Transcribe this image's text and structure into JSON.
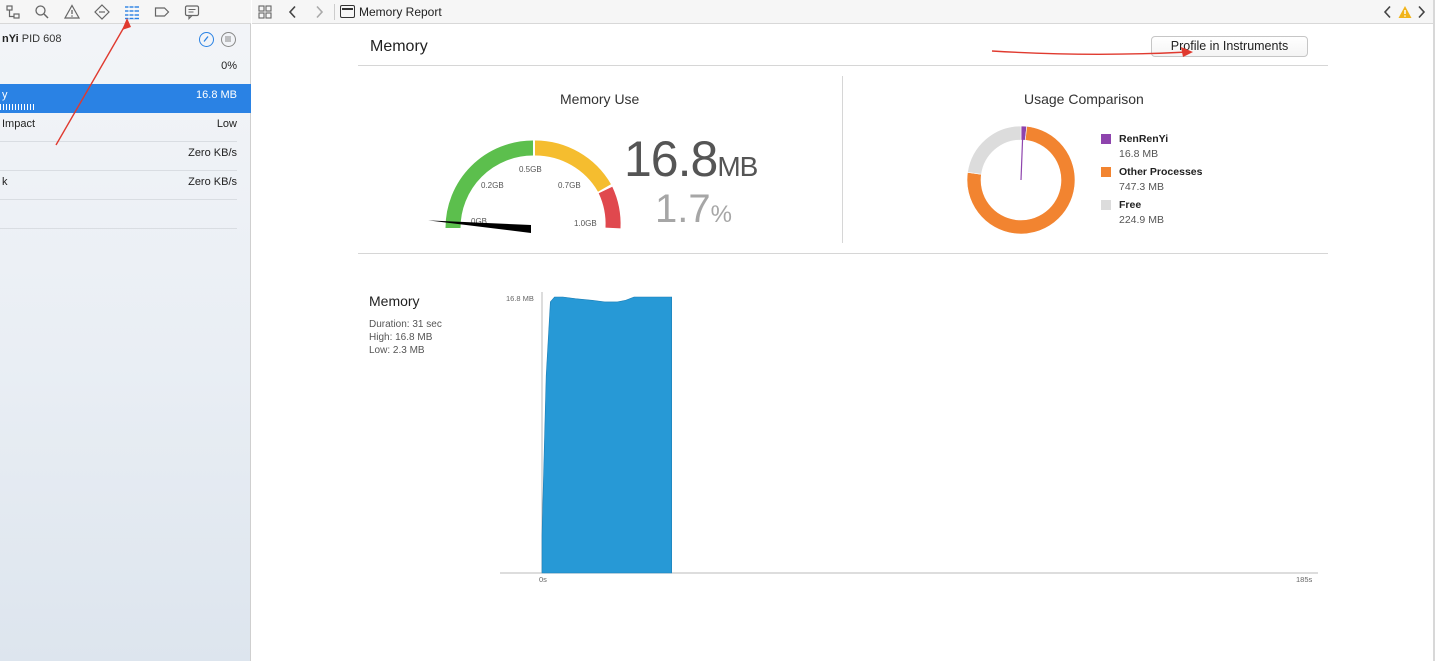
{
  "sidebar": {
    "process_name": "nYi",
    "process_pid": "PID 608",
    "cpu_value": "0%",
    "rows": [
      {
        "label": "y",
        "value": "16.8 MB"
      },
      {
        "label": "Impact",
        "value": "Low"
      },
      {
        "label": "",
        "value": "Zero KB/s"
      },
      {
        "label": "k",
        "value": "Zero KB/s"
      }
    ]
  },
  "editor": {
    "breadcrumb": "Memory Report"
  },
  "report": {
    "title": "Memory",
    "profile_button": "Profile in Instruments",
    "memory_use": {
      "title": "Memory Use",
      "value": "16.8",
      "value_unit": "MB",
      "percent": "1.7",
      "percent_unit": "%",
      "gauge_labels": [
        "0GB",
        "0.2GB",
        "0.5GB",
        "0.7GB",
        "1.0GB"
      ],
      "gauge_fraction": 0.017
    },
    "usage_comparison": {
      "title": "Usage Comparison",
      "items": [
        {
          "name": "RenRenYi",
          "amount": "16.8 MB",
          "value": 16.8,
          "color": "#8e44ad"
        },
        {
          "name": "Other Processes",
          "amount": "747.3 MB",
          "value": 747.3,
          "color": "#f28430"
        },
        {
          "name": "Free",
          "amount": "224.9 MB",
          "value": 224.9,
          "color": "#dcdcdc"
        }
      ]
    },
    "graph": {
      "title": "Memory",
      "duration": "Duration: 31 sec",
      "high": "High: 16.8 MB",
      "low": "Low: 2.3 MB",
      "y_label": "16.8 MB",
      "x_start": "0s",
      "x_end": "185s"
    }
  },
  "colors": {
    "accent": "#2a82e4",
    "gauge_green": "#5cbf4d",
    "gauge_yellow": "#f5bd2f",
    "gauge_red": "#e0484e",
    "graph_fill": "#2799d6",
    "annotation_red": "#e03a2f"
  },
  "chart_data": {
    "type": "area",
    "title": "Memory",
    "x": [
      0,
      1,
      2,
      3,
      4,
      5,
      8,
      12,
      15,
      18,
      20,
      22,
      25,
      28,
      31
    ],
    "xlabel": "s",
    "series": [
      {
        "name": "",
        "values": [
          2.3,
          12.0,
          16.5,
          16.8,
          16.8,
          16.8,
          16.7,
          16.6,
          16.5,
          16.5,
          16.6,
          16.8,
          16.8,
          16.8,
          16.8
        ]
      }
    ],
    "xlim": [
      0,
      185
    ],
    "ylim": [
      0,
      16.8
    ],
    "ylabel": ""
  }
}
